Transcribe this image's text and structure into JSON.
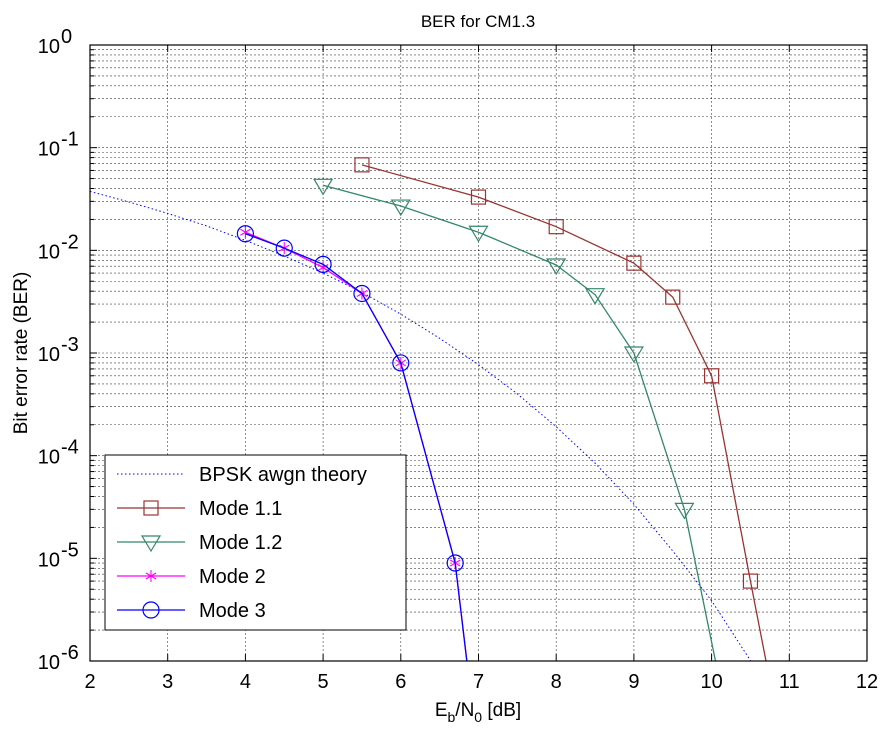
{
  "chart_data": {
    "type": "line",
    "title": "BER for CM1.3",
    "xlabel": {
      "main": "E",
      "sub1": "b",
      "slash": "/N",
      "sub2": "0",
      "tail": " [dB]"
    },
    "ylabel": "Bit error rate (BER)",
    "xlim": [
      2,
      12
    ],
    "ylim_log10": [
      -6,
      0
    ],
    "yscale": "log",
    "x_ticks": [
      "2",
      "3",
      "4",
      "5",
      "6",
      "7",
      "8",
      "9",
      "10",
      "11",
      "12"
    ],
    "y_tick_exponents": [
      "0",
      "-1",
      "-2",
      "-3",
      "-4",
      "-5",
      "-6"
    ],
    "y_tick_base": "10",
    "grid": true,
    "legend_position": "bottom-left",
    "series": [
      {
        "name": "BPSK awgn theory",
        "color": "#0000ff",
        "line_style": "dotted",
        "marker": "none",
        "x": [
          2,
          2.5,
          3,
          3.5,
          4,
          4.5,
          5,
          5.5,
          6,
          6.5,
          7,
          7.5,
          8,
          8.5,
          9,
          9.5,
          10,
          10.5
        ],
        "y": [
          0.0375,
          0.0296,
          0.0229,
          0.0173,
          0.0125,
          0.0088,
          0.006,
          0.0039,
          0.00239,
          0.00139,
          0.00077,
          0.0004,
          0.000191,
          8.46e-05,
          3.36e-05,
          1.18e-05,
          3.87e-06,
          1.01e-06
        ]
      },
      {
        "name": "Mode 1.1",
        "color": "#993333",
        "line_style": "solid",
        "marker": "square",
        "x": [
          5.5,
          7,
          8,
          9,
          9.5,
          10,
          10.5,
          10.7
        ],
        "y": [
          0.068,
          0.033,
          0.017,
          0.0075,
          0.0035,
          0.0006,
          6e-06,
          1e-06
        ]
      },
      {
        "name": "Mode 1.2",
        "color": "#33886a",
        "line_style": "solid",
        "marker": "triangle-down",
        "x": [
          5,
          6,
          7,
          8,
          8.5,
          9,
          9.65,
          10.05
        ],
        "y": [
          0.043,
          0.027,
          0.015,
          0.0072,
          0.0037,
          0.001,
          3e-05,
          1e-06
        ]
      },
      {
        "name": "Mode 2",
        "color": "#ff00ff",
        "line_style": "solid",
        "marker": "asterisk",
        "x": [
          4,
          4.5,
          5,
          5.5,
          6,
          6.7,
          6.85
        ],
        "y": [
          0.015,
          0.0105,
          0.0068,
          0.0038,
          0.0008,
          9e-06,
          1e-06
        ]
      },
      {
        "name": "Mode 3",
        "color": "#0000ff",
        "line_style": "solid",
        "marker": "circle",
        "x": [
          4,
          4.5,
          5,
          5.5,
          6,
          6.7,
          6.85
        ],
        "y": [
          0.0145,
          0.0105,
          0.0073,
          0.0038,
          0.0008,
          9e-06,
          1e-06
        ]
      }
    ]
  }
}
